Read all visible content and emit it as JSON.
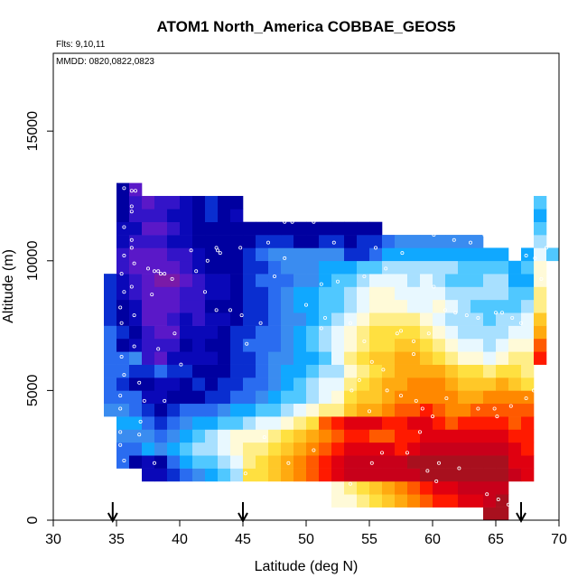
{
  "chart_data": {
    "type": "heatmap",
    "title": "ATOM1 North_America COBBAE_GEOS5",
    "notes": [
      "Flts: 9,10,11",
      "MMDD: 0820,0822,0823"
    ],
    "xlabel": "Latitude (deg N)",
    "ylabel": "Altitude (m)",
    "xlim": [
      30,
      70
    ],
    "ylim": [
      0,
      18000
    ],
    "x_ticks": [
      30,
      35,
      40,
      45,
      50,
      55,
      60,
      65,
      70
    ],
    "y_ticks": [
      0,
      5000,
      10000,
      15000
    ],
    "x_tick_labels": [
      "30",
      "35",
      "40",
      "45",
      "50",
      "55",
      "60",
      "65",
      "70"
    ],
    "y_tick_labels": [
      "0",
      "5000",
      "10000",
      "15000"
    ],
    "grid": false,
    "cell_width_deg": 1,
    "cell_height_m": 500,
    "color_scale": [
      "#7a1aa8",
      "#5a18c8",
      "#3314c8",
      "#0a08b8",
      "#0000a0",
      "#0a2ed0",
      "#2a6cf0",
      "#3a8cf0",
      "#10a8ff",
      "#50c8ff",
      "#a8e0ff",
      "#e8f8ff",
      "#fffad8",
      "#ffee88",
      "#ffe040",
      "#ffc828",
      "#ffaa10",
      "#ff8800",
      "#ff5a00",
      "#ff1a00",
      "#e00010",
      "#c8001a",
      "#a8101e"
    ],
    "columns": [
      {
        "lat": 34.5,
        "bottom": 4000,
        "values": [
          7,
          6,
          6,
          6,
          6,
          6,
          6,
          5,
          5,
          5,
          5
        ]
      },
      {
        "lat": 35.5,
        "bottom": 2000,
        "values": [
          6,
          6,
          7,
          8,
          7,
          6,
          5,
          6,
          6,
          4,
          5,
          4,
          4,
          3,
          3,
          2,
          2,
          3,
          3,
          4,
          4,
          4
        ]
      },
      {
        "lat": 36.5,
        "bottom": 2000,
        "values": [
          4,
          6,
          7,
          8,
          6,
          6,
          4,
          5,
          7,
          3,
          4,
          3,
          3,
          2,
          2,
          1,
          1,
          2,
          3,
          2,
          2,
          1
        ]
      },
      {
        "lat": 37.5,
        "bottom": 1500,
        "values": [
          3,
          3,
          8,
          7,
          6,
          5,
          3,
          4,
          5,
          2,
          2,
          2,
          1,
          1,
          1,
          1,
          1,
          1,
          2,
          1,
          2,
          1
        ]
      },
      {
        "lat": 38.5,
        "bottom": 1500,
        "values": [
          3,
          4,
          7,
          6,
          5,
          4,
          3,
          3,
          6,
          1,
          2,
          1,
          1,
          1,
          1,
          0,
          1,
          1,
          2,
          1,
          2,
          2
        ]
      },
      {
        "lat": 39.5,
        "bottom": 1500,
        "values": [
          5,
          6,
          8,
          7,
          6,
          5,
          4,
          3,
          5,
          3,
          2,
          1,
          2,
          1,
          1,
          0,
          1,
          2,
          3,
          2,
          3,
          2
        ]
      },
      {
        "lat": 40.5,
        "bottom": 1500,
        "values": [
          6,
          8,
          9,
          8,
          7,
          6,
          4,
          4,
          5,
          3,
          4,
          3,
          3,
          2,
          2,
          1,
          2,
          2,
          3,
          3,
          3,
          3
        ]
      },
      {
        "lat": 41.5,
        "bottom": 1500,
        "values": [
          7,
          9,
          10,
          9,
          8,
          6,
          4,
          5,
          4,
          3,
          3,
          3,
          2,
          2,
          2,
          2,
          3,
          3,
          4,
          4,
          4,
          4
        ]
      },
      {
        "lat": 42.5,
        "bottom": 1500,
        "values": [
          8,
          9,
          10,
          10,
          8,
          6,
          5,
          4,
          4,
          3,
          4,
          3,
          3,
          4,
          3,
          3,
          4,
          4,
          4,
          4,
          5,
          5
        ]
      },
      {
        "lat": 43.5,
        "bottom": 1500,
        "values": [
          9,
          10,
          11,
          11,
          9,
          7,
          5,
          5,
          4,
          4,
          4,
          4,
          3,
          4,
          3,
          3,
          4,
          4,
          4,
          4,
          4,
          4
        ]
      },
      {
        "lat": 44.5,
        "bottom": 1500,
        "values": [
          10,
          11,
          12,
          12,
          9,
          8,
          6,
          5,
          5,
          5,
          5,
          5,
          4,
          4,
          4,
          4,
          4,
          4,
          4,
          4,
          3,
          4
        ]
      },
      {
        "lat": 45.5,
        "bottom": 1500,
        "values": [
          14,
          13,
          13,
          12,
          10,
          8,
          6,
          6,
          5,
          5,
          6,
          5,
          5,
          5,
          5,
          5,
          5,
          5,
          4,
          4
        ]
      },
      {
        "lat": 46.5,
        "bottom": 1500,
        "values": [
          14,
          14,
          13,
          12,
          11,
          9,
          7,
          6,
          6,
          6,
          6,
          6,
          5,
          5,
          5,
          6,
          5,
          6,
          5,
          4
        ]
      },
      {
        "lat": 47.5,
        "bottom": 1500,
        "values": [
          15,
          15,
          14,
          13,
          11,
          9,
          8,
          7,
          7,
          7,
          6,
          6,
          6,
          6,
          6,
          6,
          6,
          7,
          5,
          4
        ]
      },
      {
        "lat": 48.5,
        "bottom": 1500,
        "values": [
          16,
          16,
          15,
          14,
          12,
          10,
          9,
          8,
          8,
          7,
          7,
          7,
          7,
          7,
          7,
          6,
          7,
          7,
          5,
          4
        ]
      },
      {
        "lat": 49.5,
        "bottom": 1500,
        "values": [
          17,
          17,
          16,
          15,
          13,
          11,
          9,
          9,
          8,
          8,
          8,
          8,
          7,
          8,
          8,
          7,
          7,
          7,
          4,
          4
        ]
      },
      {
        "lat": 50.5,
        "bottom": 1500,
        "values": [
          18,
          18,
          17,
          16,
          14,
          12,
          10,
          10,
          9,
          8,
          9,
          9,
          8,
          8,
          8,
          7,
          7,
          7,
          4,
          4
        ]
      },
      {
        "lat": 51.5,
        "bottom": 1500,
        "values": [
          19,
          19,
          18,
          17,
          18,
          13,
          11,
          11,
          10,
          9,
          10,
          10,
          9,
          9,
          9,
          8,
          8,
          7,
          5,
          4
        ]
      },
      {
        "lat": 52.5,
        "bottom": 500,
        "values": [
          12,
          12,
          20,
          20,
          19,
          18,
          19,
          13,
          12,
          11,
          10,
          11,
          11,
          11,
          10,
          9,
          9,
          9,
          8,
          7,
          5,
          4
        ]
      },
      {
        "lat": 53.5,
        "bottom": 500,
        "values": [
          12,
          13,
          21,
          21,
          20,
          19,
          20,
          15,
          14,
          13,
          12,
          13,
          12,
          12,
          11,
          10,
          10,
          9,
          8,
          5,
          4,
          4
        ]
      },
      {
        "lat": 54.5,
        "bottom": 500,
        "values": [
          13,
          14,
          21,
          21,
          20,
          19,
          20,
          16,
          15,
          14,
          13,
          14,
          13,
          13,
          12,
          11,
          11,
          10,
          9,
          5,
          5,
          4
        ]
      },
      {
        "lat": 55.5,
        "bottom": 500,
        "values": [
          14,
          15,
          21,
          21,
          20,
          18,
          20,
          16,
          15,
          15,
          14,
          15,
          14,
          14,
          13,
          12,
          12,
          11,
          9,
          6,
          5,
          4
        ]
      },
      {
        "lat": 56.5,
        "bottom": 500,
        "values": [
          15,
          16,
          21,
          21,
          20,
          18,
          19,
          17,
          16,
          16,
          15,
          15,
          14,
          14,
          13,
          12,
          12,
          11,
          10,
          8,
          6
        ]
      },
      {
        "lat": 57.5,
        "bottom": 500,
        "values": [
          16,
          17,
          21,
          21,
          19,
          19,
          19,
          18,
          17,
          16,
          16,
          16,
          15,
          14,
          13,
          12,
          11,
          11,
          10,
          8,
          7
        ]
      },
      {
        "lat": 58.5,
        "bottom": 500,
        "values": [
          17,
          18,
          21,
          22,
          20,
          19,
          20,
          18,
          17,
          17,
          16,
          16,
          15,
          14,
          13,
          11,
          11,
          10,
          10,
          8,
          7
        ]
      },
      {
        "lat": 59.5,
        "bottom": 500,
        "values": [
          18,
          19,
          22,
          22,
          21,
          20,
          20,
          19,
          17,
          17,
          16,
          15,
          14,
          13,
          12,
          11,
          11,
          11,
          10,
          8,
          7
        ]
      },
      {
        "lat": 60.5,
        "bottom": 500,
        "values": [
          19,
          20,
          22,
          22,
          21,
          20,
          19,
          18,
          17,
          17,
          16,
          14,
          13,
          12,
          11,
          12,
          11,
          10,
          10,
          8,
          7
        ]
      },
      {
        "lat": 61.5,
        "bottom": 500,
        "values": [
          19,
          20,
          22,
          22,
          21,
          20,
          18,
          17,
          17,
          16,
          15,
          13,
          12,
          11,
          10,
          11,
          10,
          9,
          10,
          8,
          7
        ]
      },
      {
        "lat": 62.5,
        "bottom": 500,
        "values": [
          20,
          21,
          22,
          22,
          21,
          20,
          19,
          17,
          16,
          15,
          14,
          12,
          11,
          10,
          10,
          10,
          10,
          9,
          9,
          8,
          7
        ]
      },
      {
        "lat": 63.5,
        "bottom": 500,
        "values": [
          20,
          21,
          22,
          22,
          21,
          20,
          19,
          18,
          16,
          15,
          14,
          12,
          11,
          10,
          10,
          9,
          10,
          9,
          9,
          8,
          7
        ]
      },
      {
        "lat": 64.5,
        "bottom": 0,
        "values": [
          22,
          21,
          21,
          22,
          22,
          21,
          20,
          19,
          18,
          17,
          15,
          13,
          11,
          10,
          10,
          9,
          9,
          10,
          10,
          9,
          8
        ]
      },
      {
        "lat": 65.5,
        "bottom": 0,
        "values": [
          22,
          22,
          21,
          22,
          22,
          21,
          20,
          19,
          18,
          17,
          16,
          14,
          12,
          11,
          10,
          10,
          9,
          10,
          10,
          9,
          8
        ]
      },
      {
        "lat": 66.5,
        "bottom": 1500,
        "values": [
          21,
          20,
          20,
          19,
          18,
          18,
          17,
          15,
          14,
          13,
          12,
          11,
          10,
          9,
          9,
          8,
          8
        ]
      },
      {
        "lat": 67.5,
        "bottom": 1500,
        "values": [
          20,
          20,
          19,
          19,
          19,
          18,
          17,
          14,
          13,
          13,
          12,
          11,
          11,
          10,
          9,
          8,
          9,
          8
        ]
      },
      {
        "lat": 68.5,
        "bottom": 6000,
        "values": [
          19,
          18,
          16,
          15,
          13,
          13,
          12,
          12,
          11,
          10,
          9,
          8,
          9
        ]
      },
      {
        "lat": 69.5,
        "bottom": 10000,
        "values": [
          9
        ]
      }
    ],
    "points": [
      [
        35.6,
        12800
      ],
      [
        36.2,
        12700
      ],
      [
        36.5,
        12700
      ],
      [
        36.2,
        12100
      ],
      [
        36.2,
        11900
      ],
      [
        35.6,
        11300
      ],
      [
        36.2,
        10800
      ],
      [
        36.2,
        10500
      ],
      [
        35.6,
        10200
      ],
      [
        36.4,
        9900
      ],
      [
        35.4,
        9500
      ],
      [
        37.5,
        9700
      ],
      [
        38.0,
        9600
      ],
      [
        38.3,
        9600
      ],
      [
        38.5,
        9500
      ],
      [
        38.8,
        9500
      ],
      [
        39.4,
        9300
      ],
      [
        36.2,
        9000
      ],
      [
        35.6,
        8800
      ],
      [
        37.8,
        8700
      ],
      [
        35.3,
        8200
      ],
      [
        36.4,
        7900
      ],
      [
        35.4,
        7600
      ],
      [
        39.6,
        7200
      ],
      [
        36.4,
        6700
      ],
      [
        38.3,
        6600
      ],
      [
        35.4,
        6300
      ],
      [
        40.1,
        6000
      ],
      [
        35.6,
        5600
      ],
      [
        36.8,
        5300
      ],
      [
        35.3,
        4800
      ],
      [
        37.2,
        4600
      ],
      [
        38.8,
        4600
      ],
      [
        35.3,
        4300
      ],
      [
        36.9,
        3800
      ],
      [
        35.3,
        3400
      ],
      [
        36.8,
        3300
      ],
      [
        35.3,
        2900
      ],
      [
        35.6,
        2300
      ],
      [
        38.0,
        2200
      ],
      [
        40.9,
        10400
      ],
      [
        42.2,
        10000
      ],
      [
        42.9,
        10500
      ],
      [
        43.0,
        10400
      ],
      [
        43.2,
        10300
      ],
      [
        44.8,
        10500
      ],
      [
        41.3,
        9600
      ],
      [
        42.0,
        8800
      ],
      [
        42.9,
        8100
      ],
      [
        44.0,
        8100
      ],
      [
        44.9,
        7900
      ],
      [
        45.3,
        6800
      ],
      [
        46.4,
        7600
      ],
      [
        47.5,
        9400
      ],
      [
        48.9,
        11500
      ],
      [
        50.6,
        11500
      ],
      [
        48.3,
        11500
      ],
      [
        48.6,
        11900
      ],
      [
        49.2,
        11800
      ],
      [
        50.2,
        11600
      ],
      [
        47.0,
        10700
      ],
      [
        48.3,
        10100
      ],
      [
        50.0,
        8300
      ],
      [
        51.2,
        7400
      ],
      [
        54.6,
        6900
      ],
      [
        55.2,
        6100
      ],
      [
        58.5,
        6400
      ],
      [
        56.1,
        5800
      ],
      [
        54.2,
        5400
      ],
      [
        53.6,
        5000
      ],
      [
        56.4,
        5000
      ],
      [
        57.5,
        4800
      ],
      [
        58.7,
        4600
      ],
      [
        59.2,
        4300
      ],
      [
        60.0,
        4000
      ],
      [
        61.1,
        4700
      ],
      [
        63.6,
        4300
      ],
      [
        64.9,
        4300
      ],
      [
        65.1,
        4000
      ],
      [
        66.2,
        4400
      ],
      [
        67.4,
        4700
      ],
      [
        68.0,
        5000
      ],
      [
        55.0,
        4200
      ],
      [
        50.6,
        2700
      ],
      [
        55.2,
        2200
      ],
      [
        56.0,
        2600
      ],
      [
        58.0,
        2600
      ],
      [
        59.6,
        1900
      ],
      [
        60.5,
        2200
      ],
      [
        62.1,
        2000
      ],
      [
        64.3,
        1000
      ],
      [
        65.2,
        800
      ],
      [
        66.0,
        600
      ],
      [
        51.5,
        7800
      ],
      [
        53.5,
        7600
      ],
      [
        57.5,
        7300
      ],
      [
        52.2,
        10700
      ],
      [
        55.5,
        10500
      ],
      [
        57.6,
        10300
      ],
      [
        60.1,
        11000
      ],
      [
        61.7,
        10800
      ],
      [
        63.0,
        10700
      ],
      [
        64.1,
        11000
      ],
      [
        67.4,
        10200
      ],
      [
        68.1,
        10100
      ],
      [
        69.0,
        10500
      ],
      [
        68.6,
        9300
      ],
      [
        65.5,
        8000
      ],
      [
        66.3,
        7800
      ],
      [
        67.0,
        7600
      ],
      [
        61.0,
        8100
      ],
      [
        61.8,
        8000
      ],
      [
        62.7,
        7900
      ],
      [
        63.6,
        7800
      ],
      [
        65.0,
        8000
      ],
      [
        60.1,
        9000
      ],
      [
        59.7,
        7200
      ],
      [
        57.2,
        7200
      ],
      [
        58.5,
        6900
      ],
      [
        45.2,
        1800
      ],
      [
        48.6,
        2200
      ],
      [
        46.7,
        3200
      ],
      [
        53.5,
        1400
      ],
      [
        59.0,
        3400
      ],
      [
        60.3,
        1500
      ],
      [
        51.2,
        9100
      ],
      [
        52.5,
        9200
      ],
      [
        54.6,
        9400
      ],
      [
        56.3,
        9700
      ]
    ],
    "arrows": [
      34.7,
      45.0,
      67.0
    ]
  }
}
